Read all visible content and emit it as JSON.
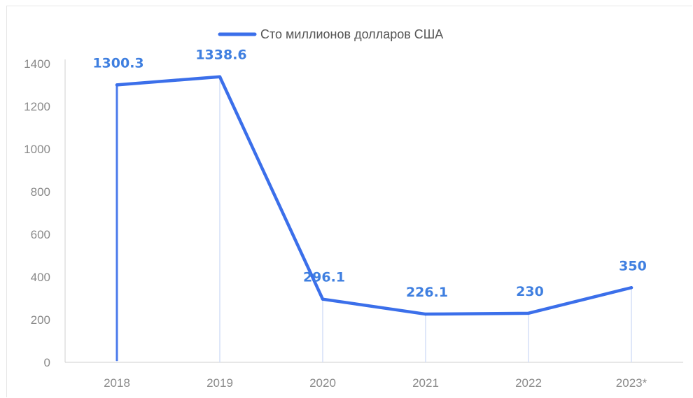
{
  "chart_data": {
    "type": "line",
    "categories": [
      "2018",
      "2019",
      "2020",
      "2021",
      "2022",
      "2023*"
    ],
    "series": [
      {
        "name": "Сто миллионов долларов США",
        "values": [
          1300.3,
          1338.6,
          296.1,
          226.1,
          230,
          350
        ],
        "labels": [
          "1300.3",
          "1338.6",
          "296.1",
          "226.1",
          "230",
          "350"
        ],
        "color": "#3b6fea"
      }
    ],
    "ylim": [
      0,
      1400
    ],
    "yticks": [
      0,
      200,
      400,
      600,
      800,
      1000,
      1200,
      1400
    ],
    "legend_position": "top-center",
    "grid": false,
    "colors": {
      "line": "#3b6fea",
      "label": "#3f7fe0",
      "drop_line": "#d4dff7",
      "axis": "#cfcfcf",
      "tick_text": "#8a8a8a"
    }
  }
}
